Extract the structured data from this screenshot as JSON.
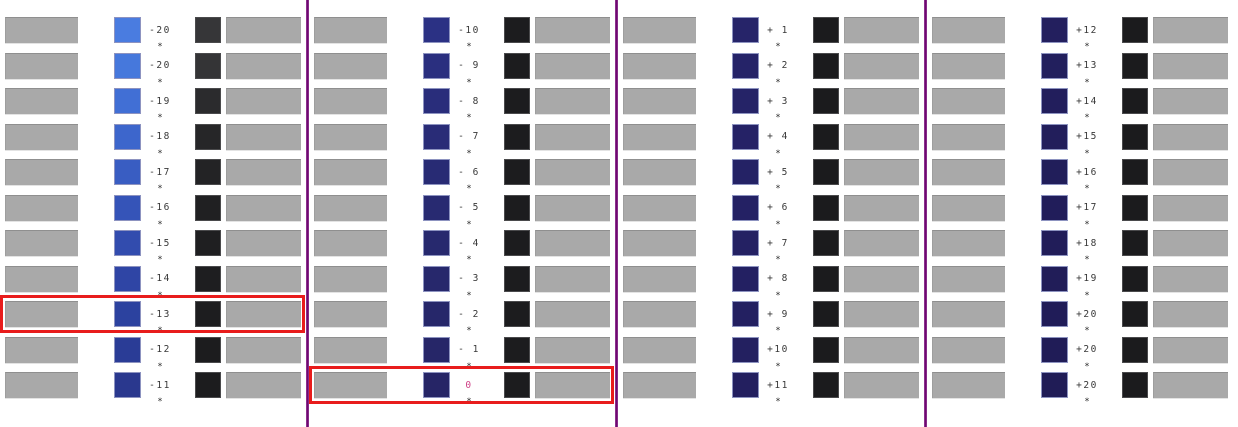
{
  "colors": {
    "background": "#FFFFFF",
    "gray_bar": "#A9A9A9",
    "gray_bar_edge": "#8F8F8F",
    "divider": "#6D0A70",
    "divider_edge": "#A84FA8",
    "highlight_border": "#E81C1C",
    "label_text": "#383838",
    "zero_label_text": "#CE3F85",
    "asterisk": "#2F2F2F"
  },
  "marker": {
    "glyph": "*"
  },
  "groups": [
    {
      "rows": [
        {
          "label": "-20",
          "blue": "#4A7CE0",
          "black": "#363638"
        },
        {
          "label": "-20",
          "blue": "#4678DC",
          "black": "#343436"
        },
        {
          "label": "-19",
          "blue": "#416FD5",
          "black": "#2B2B2D"
        },
        {
          "label": "-18",
          "blue": "#3D66CC",
          "black": "#262628"
        },
        {
          "label": "-17",
          "blue": "#395DC2",
          "black": "#232325"
        },
        {
          "label": "-16",
          "blue": "#3554B8",
          "black": "#202022"
        },
        {
          "label": "-15",
          "blue": "#324CAE",
          "black": "#1F1F21"
        },
        {
          "label": "-14",
          "blue": "#2F45A5",
          "black": "#1E1E20"
        },
        {
          "label": "-13",
          "blue": "#2C429F",
          "black": "#1D1D1F",
          "highlighted": true
        },
        {
          "label": "-12",
          "blue": "#2A3C96",
          "black": "#1C1C1E"
        },
        {
          "label": "-11",
          "blue": "#2A388E",
          "black": "#1C1C1E"
        }
      ]
    },
    {
      "rows": [
        {
          "label": "-10",
          "blue": "#2B3184",
          "black": "#1C1C1E"
        },
        {
          "label": "- 9",
          "blue": "#2A2F7F",
          "black": "#1C1C1E"
        },
        {
          "label": "- 8",
          "blue": "#292D7B",
          "black": "#1C1C1E"
        },
        {
          "label": "- 7",
          "blue": "#292C77",
          "black": "#1C1C1E"
        },
        {
          "label": "- 6",
          "blue": "#282B74",
          "black": "#1C1C1E"
        },
        {
          "label": "- 5",
          "blue": "#282A71",
          "black": "#1C1C1E"
        },
        {
          "label": "- 4",
          "blue": "#27296E",
          "black": "#1C1C1E"
        },
        {
          "label": "- 3",
          "blue": "#27286C",
          "black": "#1C1C1E"
        },
        {
          "label": "- 2",
          "blue": "#26276A",
          "black": "#1C1C1E"
        },
        {
          "label": "- 1",
          "blue": "#262668",
          "black": "#1C1C1E"
        },
        {
          "label": "0",
          "blue": "#262566",
          "black": "#1C1C1E",
          "highlighted": true,
          "label_color": "#CE3F85"
        }
      ]
    },
    {
      "rows": [
        {
          "label": "+ 1",
          "blue": "#262469",
          "black": "#1B1B1D"
        },
        {
          "label": "+ 2",
          "blue": "#252368",
          "black": "#1B1B1D"
        },
        {
          "label": "+ 3",
          "blue": "#252367",
          "black": "#1B1B1D"
        },
        {
          "label": "+ 4",
          "blue": "#252266",
          "black": "#1B1B1D"
        },
        {
          "label": "+ 5",
          "blue": "#242265",
          "black": "#1B1B1D"
        },
        {
          "label": "+ 6",
          "blue": "#242164",
          "black": "#1B1B1D"
        },
        {
          "label": "+ 7",
          "blue": "#242163",
          "black": "#1B1B1D"
        },
        {
          "label": "+ 8",
          "blue": "#232062",
          "black": "#1B1B1D"
        },
        {
          "label": "+ 9",
          "blue": "#232061",
          "black": "#1B1B1D"
        },
        {
          "label": "+10",
          "blue": "#232060",
          "black": "#1B1B1D"
        },
        {
          "label": "+11",
          "blue": "#231F5F",
          "black": "#1B1B1D"
        }
      ]
    },
    {
      "rows": [
        {
          "label": "+12",
          "blue": "#231F5E",
          "black": "#1B1B1D"
        },
        {
          "label": "+13",
          "blue": "#221F5D",
          "black": "#1B1B1D"
        },
        {
          "label": "+14",
          "blue": "#221E5C",
          "black": "#1B1B1D"
        },
        {
          "label": "+15",
          "blue": "#221E5B",
          "black": "#1B1B1D"
        },
        {
          "label": "+16",
          "blue": "#211E5A",
          "black": "#1B1B1D"
        },
        {
          "label": "+17",
          "blue": "#211D5A",
          "black": "#1B1B1D"
        },
        {
          "label": "+18",
          "blue": "#211D59",
          "black": "#1B1B1D"
        },
        {
          "label": "+19",
          "blue": "#211D58",
          "black": "#1B1B1D"
        },
        {
          "label": "+20",
          "blue": "#201C58",
          "black": "#1B1B1D"
        },
        {
          "label": "+20",
          "blue": "#201C57",
          "black": "#1B1B1D"
        },
        {
          "label": "+20",
          "blue": "#201C56",
          "black": "#1B1B1D"
        }
      ]
    }
  ]
}
